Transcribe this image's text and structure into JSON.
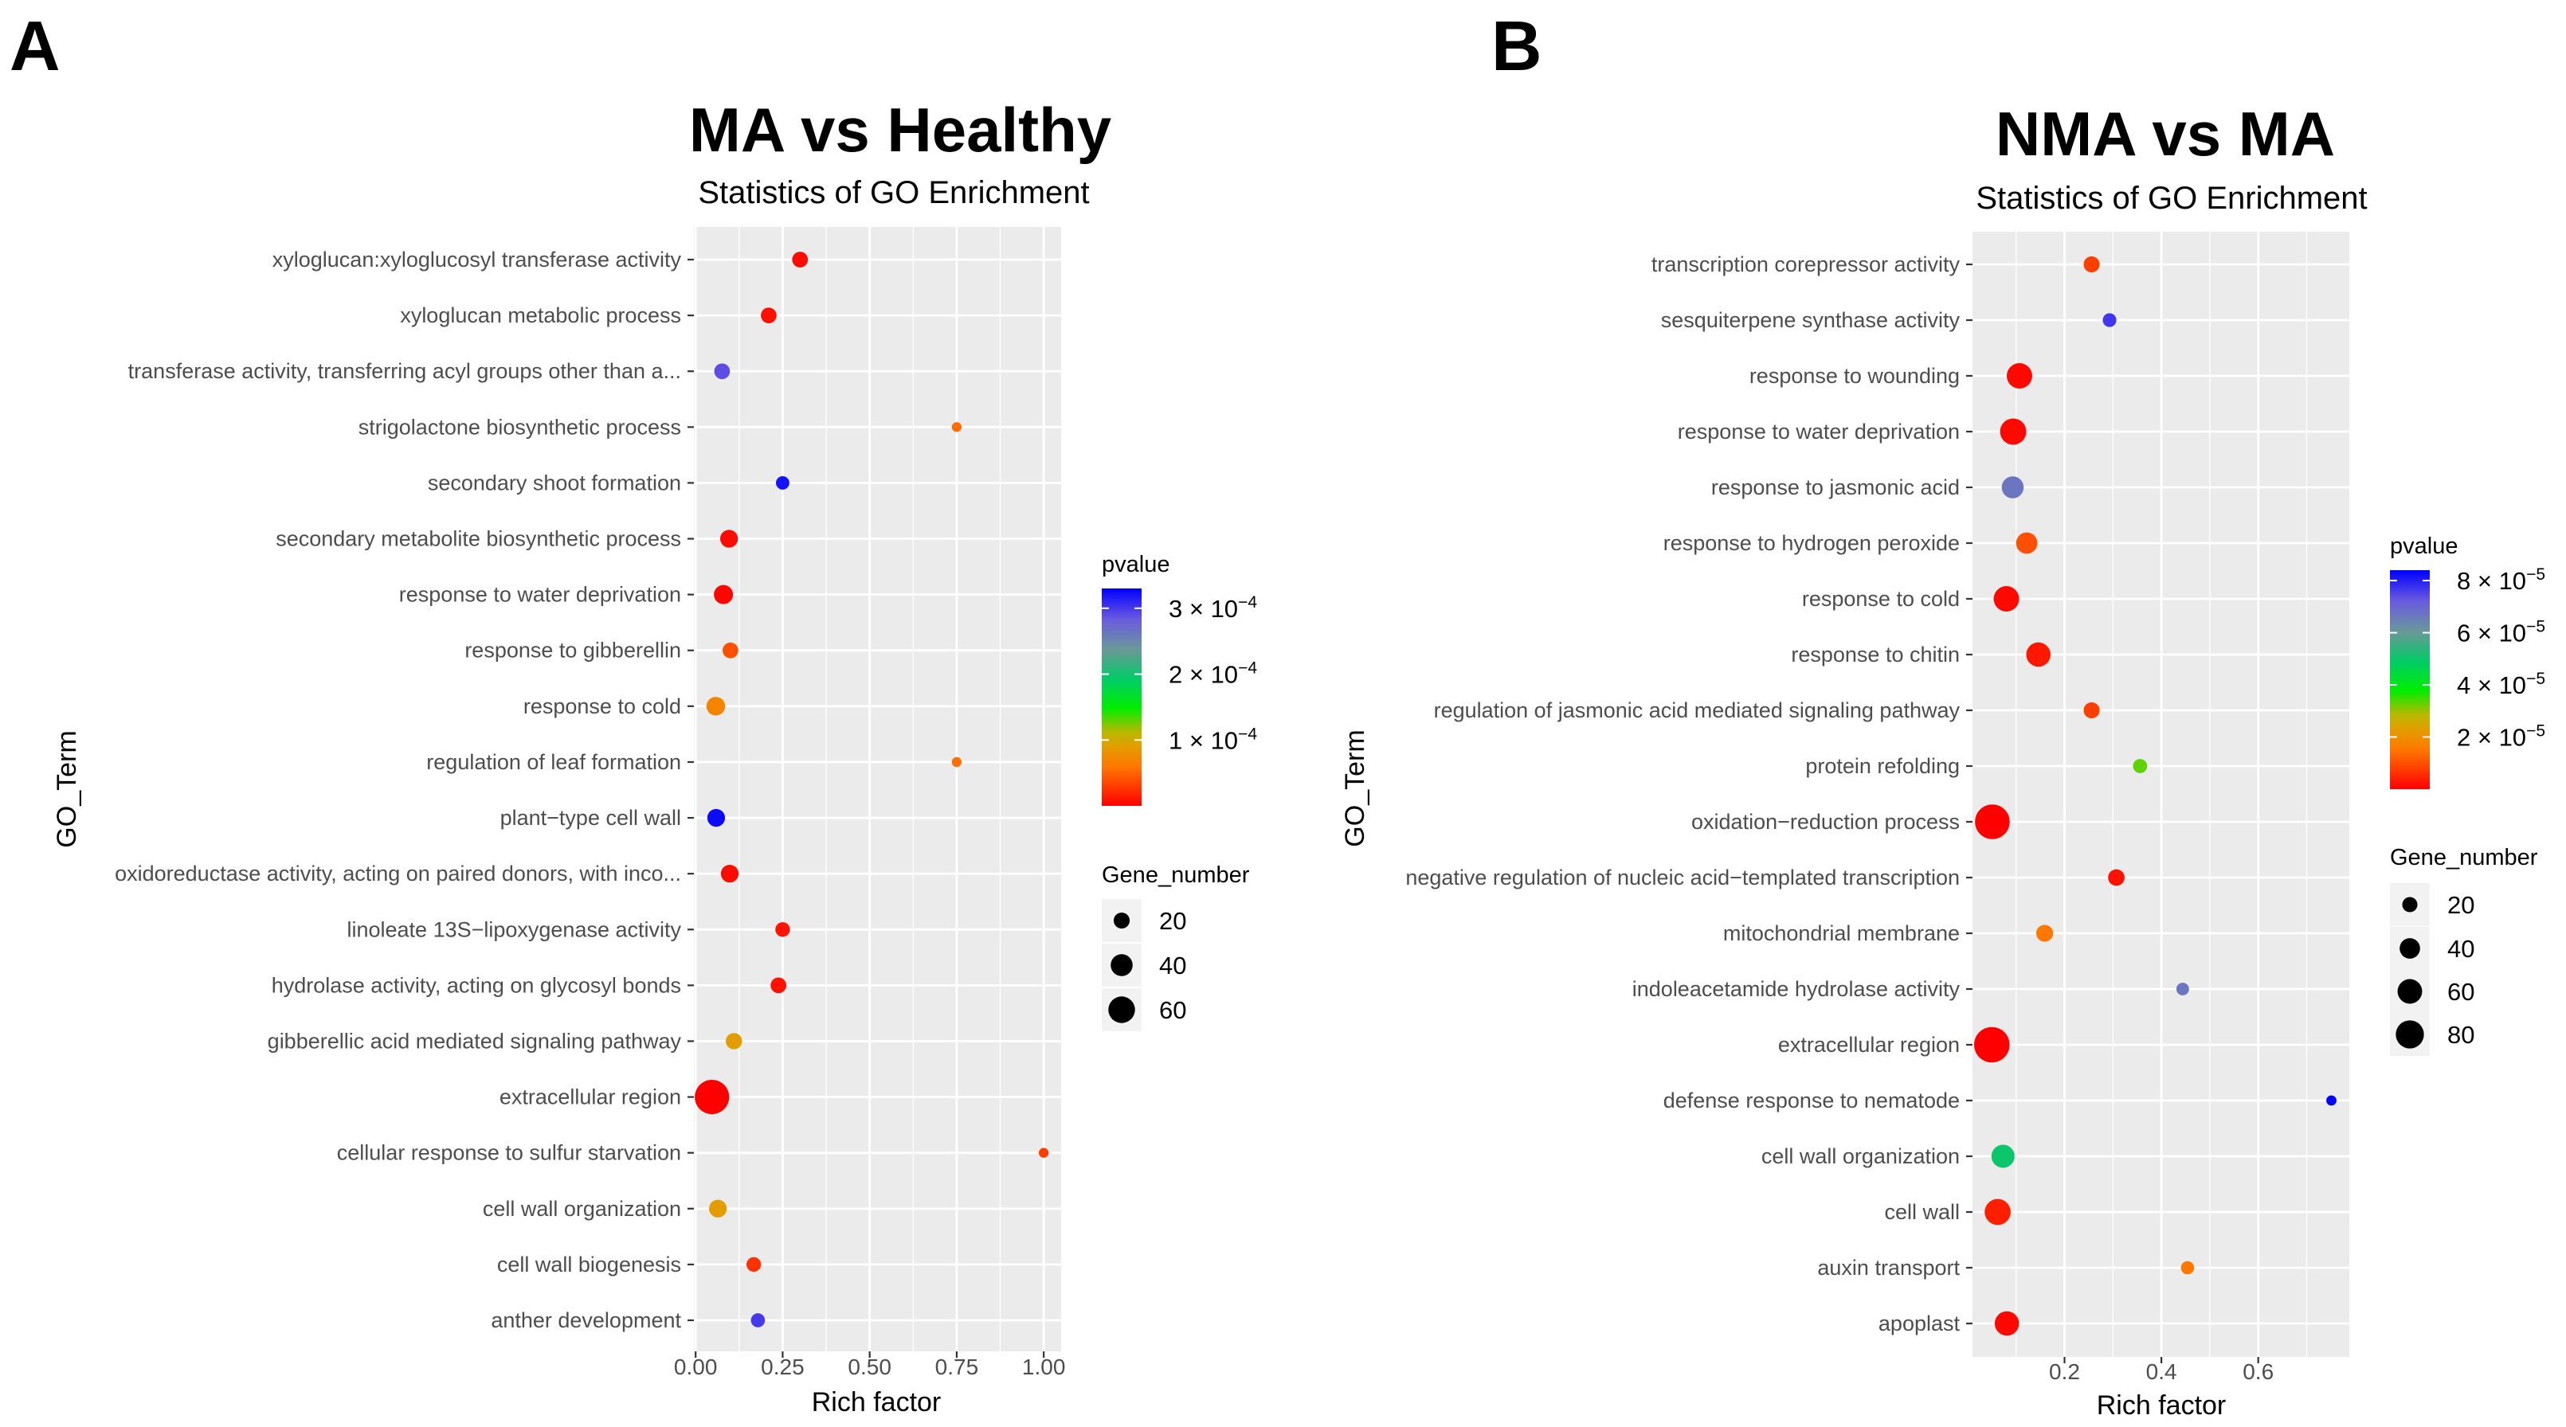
{
  "chart_data": [
    {
      "type": "scatter",
      "panel_label": "A",
      "title": "MA vs Healthy",
      "subtitle": "Statistics of GO Enrichment",
      "xlabel": "Rich factor",
      "ylabel": "GO_Term",
      "xlim": [
        -0.005,
        1.05
      ],
      "xticks": [
        0,
        0.25,
        0.5,
        0.75,
        1.0
      ],
      "xtick_labels": [
        "0.00",
        "0.25",
        "0.50",
        "0.75",
        "1.00"
      ],
      "grid": true,
      "color_legend": {
        "title": "pvalue",
        "range": [
          0,
          0.00033
        ],
        "ticks": [
          {
            "value": 0.0003,
            "mantissa": "3 × 10",
            "exp": "−4"
          },
          {
            "value": 0.0002,
            "mantissa": "2 × 10",
            "exp": "−4"
          },
          {
            "value": 0.0001,
            "mantissa": "1 × 10",
            "exp": "−4"
          }
        ]
      },
      "size_legend": {
        "title": "Gene_number",
        "values": [
          20,
          40,
          60
        ]
      },
      "terms": [
        {
          "term": "xyloglucan:xyloglucosyl transferase activity",
          "rich_factor": 0.3,
          "gene_number": 12,
          "pvalue": 5e-06
        },
        {
          "term": "xyloglucan metabolic process",
          "rich_factor": 0.21,
          "gene_number": 12,
          "pvalue": 8e-06
        },
        {
          "term": "transferase activity, transferring acyl groups other than a...",
          "rich_factor": 0.076,
          "gene_number": 12,
          "pvalue": 0.00029
        },
        {
          "term": "strigolactone biosynthetic process",
          "rich_factor": 0.75,
          "gene_number": 3,
          "pvalue": 5.5e-05
        },
        {
          "term": "secondary shoot formation",
          "rich_factor": 0.25,
          "gene_number": 8,
          "pvalue": 0.00032
        },
        {
          "term": "secondary metabolite biosynthetic process",
          "rich_factor": 0.096,
          "gene_number": 16,
          "pvalue": 5e-06
        },
        {
          "term": "response to water deprivation",
          "rich_factor": 0.08,
          "gene_number": 19,
          "pvalue": 2e-06
        },
        {
          "term": "response to gibberellin",
          "rich_factor": 0.1,
          "gene_number": 12,
          "pvalue": 4e-05
        },
        {
          "term": "response to cold",
          "rich_factor": 0.058,
          "gene_number": 18,
          "pvalue": 7e-05
        },
        {
          "term": "regulation of leaf formation",
          "rich_factor": 0.75,
          "gene_number": 3,
          "pvalue": 5.5e-05
        },
        {
          "term": "plant−type cell wall",
          "rich_factor": 0.059,
          "gene_number": 16,
          "pvalue": 0.000325
        },
        {
          "term": "oxidoreductase activity, acting on paired donors, with inco...",
          "rich_factor": 0.098,
          "gene_number": 16,
          "pvalue": 5e-06
        },
        {
          "term": "linoleate 13S−lipoxygenase activity",
          "rich_factor": 0.25,
          "gene_number": 10,
          "pvalue": 1e-05
        },
        {
          "term": "hydrolase activity, acting on glycosyl bonds",
          "rich_factor": 0.238,
          "gene_number": 12,
          "pvalue": 8e-06
        },
        {
          "term": "gibberellic acid mediated signaling pathway",
          "rich_factor": 0.11,
          "gene_number": 13,
          "pvalue": 9e-05
        },
        {
          "term": "extracellular region",
          "rich_factor": 0.047,
          "gene_number": 68,
          "pvalue": 0.0
        },
        {
          "term": "cellular response to sulfur starvation",
          "rich_factor": 1.0,
          "gene_number": 3,
          "pvalue": 3e-05
        },
        {
          "term": "cell wall organization",
          "rich_factor": 0.064,
          "gene_number": 16,
          "pvalue": 9e-05
        },
        {
          "term": "cell wall biogenesis",
          "rich_factor": 0.167,
          "gene_number": 10,
          "pvalue": 2.5e-05
        },
        {
          "term": "anther development",
          "rich_factor": 0.179,
          "gene_number": 9,
          "pvalue": 0.0003
        }
      ]
    },
    {
      "type": "scatter",
      "panel_label": "B",
      "title": "NMA vs MA",
      "subtitle": "Statistics of GO Enrichment",
      "xlabel": "Rich factor",
      "ylabel": "GO_Term",
      "xlim": [
        0.01,
        0.788
      ],
      "xticks": [
        0.2,
        0.4,
        0.6
      ],
      "xtick_labels": [
        "0.2",
        "0.4",
        "0.6"
      ],
      "grid": true,
      "color_legend": {
        "title": "pvalue",
        "range": [
          0,
          8.4e-05
        ],
        "ticks": [
          {
            "value": 8e-05,
            "mantissa": "8 × 10",
            "exp": "−5"
          },
          {
            "value": 6e-05,
            "mantissa": "6 × 10",
            "exp": "−5"
          },
          {
            "value": 4e-05,
            "mantissa": "4 × 10",
            "exp": "−5"
          },
          {
            "value": 2e-05,
            "mantissa": "2 × 10",
            "exp": "−5"
          }
        ]
      },
      "size_legend": {
        "title": "Gene_number",
        "values": [
          20,
          40,
          60,
          80
        ]
      },
      "terms": [
        {
          "term": "transcription corepressor activity",
          "rich_factor": 0.256,
          "gene_number": 14,
          "pvalue": 8e-06
        },
        {
          "term": "sesquiterpene synthase activity",
          "rich_factor": 0.293,
          "gene_number": 9,
          "pvalue": 7.7e-05
        },
        {
          "term": "response to wounding",
          "rich_factor": 0.107,
          "gene_number": 42,
          "pvalue": 1e-06
        },
        {
          "term": "response to water deprivation",
          "rich_factor": 0.094,
          "gene_number": 45,
          "pvalue": 1e-06
        },
        {
          "term": "response to jasmonic acid",
          "rich_factor": 0.093,
          "gene_number": 30,
          "pvalue": 6.7e-05
        },
        {
          "term": "response to hydrogen peroxide",
          "rich_factor": 0.122,
          "gene_number": 28,
          "pvalue": 1e-05
        },
        {
          "term": "response to cold",
          "rich_factor": 0.08,
          "gene_number": 42,
          "pvalue": 1e-06
        },
        {
          "term": "response to chitin",
          "rich_factor": 0.146,
          "gene_number": 38,
          "pvalue": 3e-06
        },
        {
          "term": "regulation of jasmonic acid mediated signaling pathway",
          "rich_factor": 0.256,
          "gene_number": 14,
          "pvalue": 8e-06
        },
        {
          "term": "protein refolding",
          "rich_factor": 0.356,
          "gene_number": 10,
          "pvalue": 3.3e-05
        },
        {
          "term": "oxidation−reduction process",
          "rich_factor": 0.051,
          "gene_number": 82,
          "pvalue": 0.0
        },
        {
          "term": "negative regulation of nucleic acid−templated transcription",
          "rich_factor": 0.307,
          "gene_number": 15,
          "pvalue": 2e-06
        },
        {
          "term": "mitochondrial membrane",
          "rich_factor": 0.159,
          "gene_number": 16,
          "pvalue": 1.5e-05
        },
        {
          "term": "indoleacetamide hydrolase activity",
          "rich_factor": 0.444,
          "gene_number": 7,
          "pvalue": 6.7e-05
        },
        {
          "term": "extracellular region",
          "rich_factor": 0.05,
          "gene_number": 86,
          "pvalue": 0.0
        },
        {
          "term": "defense response to nematode",
          "rich_factor": 0.751,
          "gene_number": 3,
          "pvalue": 8.4e-05
        },
        {
          "term": "cell wall organization",
          "rich_factor": 0.073,
          "gene_number": 34,
          "pvalue": 5e-05
        },
        {
          "term": "cell wall",
          "rich_factor": 0.062,
          "gene_number": 44,
          "pvalue": 4e-06
        },
        {
          "term": "auxin transport",
          "rich_factor": 0.454,
          "gene_number": 8,
          "pvalue": 1.5e-05
        },
        {
          "term": "apoplast",
          "rich_factor": 0.081,
          "gene_number": 38,
          "pvalue": 1e-06
        }
      ]
    }
  ],
  "colors": {
    "panel_bg": "#ebebeb",
    "grid": "#ffffff",
    "text": "#4d4d4d"
  }
}
